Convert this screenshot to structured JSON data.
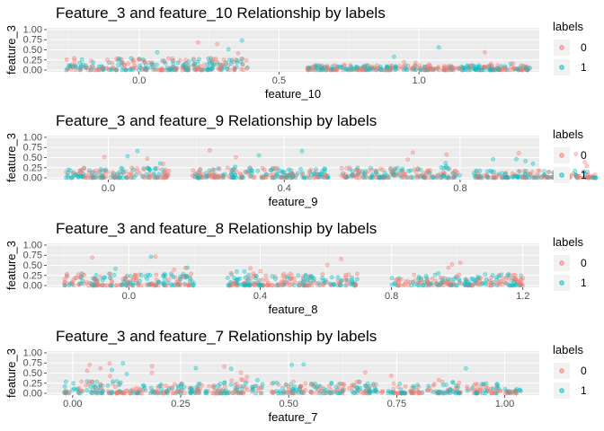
{
  "legend_colors": {
    "0": "#F8766D",
    "1": "#00BFC4"
  },
  "point_alpha": 0.35,
  "chart_data": [
    {
      "type": "scatter",
      "title": "Feature_3 and  feature_10 Relationship by labels",
      "xlabel": "feature_10",
      "ylabel": "feature_3",
      "xlim": [
        -0.33,
        1.43
      ],
      "ylim": [
        0,
        1.0
      ],
      "x_ticks": [
        0.0,
        0.5,
        1.0
      ],
      "x_tick_labels": [
        "0.0",
        "0.5",
        "1.0"
      ],
      "y_ticks": [
        0,
        0.25,
        0.5,
        0.75,
        1.0
      ],
      "y_tick_labels": [
        "0.00",
        "0.25",
        "0.50",
        "0.75",
        "1.00"
      ],
      "grid": true,
      "clusters": [
        [
          -0.26,
          0.39
        ],
        [
          0.6,
          1.4
        ]
      ],
      "cluster_ymax": [
        0.3,
        0.12
      ],
      "legend": {
        "title": "labels",
        "entries": [
          "0",
          "1"
        ],
        "position": "right"
      }
    },
    {
      "type": "scatter",
      "title": "Feature_3 and  feature_9 Relationship by labels",
      "xlabel": "feature_9",
      "ylabel": "feature_3",
      "xlim": [
        -0.14,
        0.98
      ],
      "ylim": [
        0,
        1.0
      ],
      "x_ticks": [
        0.0,
        0.4,
        0.8
      ],
      "x_tick_labels": [
        "0.0",
        "0.4",
        "0.8"
      ],
      "y_ticks": [
        0,
        0.25,
        0.5,
        0.75,
        1.0
      ],
      "y_tick_labels": [
        "0.00",
        "0.25",
        "0.50",
        "0.75",
        "1.00"
      ],
      "grid": true,
      "clusters": [
        [
          -0.1,
          0.14
        ],
        [
          0.19,
          0.5
        ],
        [
          0.53,
          0.8
        ],
        [
          0.83,
          1.11
        ]
      ],
      "cluster_ymax": [
        0.25,
        0.25,
        0.25,
        0.18
      ],
      "legend": {
        "title": "labels",
        "entries": [
          "0",
          "1"
        ],
        "position": "right"
      }
    },
    {
      "type": "scatter",
      "title": "Feature_3 and  feature_8 Relationship by labels",
      "xlabel": "feature_8",
      "ylabel": "feature_3",
      "xlim": [
        -0.25,
        1.25
      ],
      "ylim": [
        0,
        1.0
      ],
      "x_ticks": [
        0.0,
        0.4,
        0.8,
        1.2
      ],
      "x_tick_labels": [
        "0.0",
        "0.4",
        "0.8",
        "1.2"
      ],
      "y_ticks": [
        0,
        0.25,
        0.5,
        0.75,
        1.0
      ],
      "y_tick_labels": [
        "0.00",
        "0.25",
        "0.50",
        "0.75",
        "1.00"
      ],
      "grid": true,
      "clusters": [
        [
          -0.2,
          0.2
        ],
        [
          0.3,
          0.7
        ],
        [
          0.8,
          1.2
        ]
      ],
      "cluster_ymax": [
        0.3,
        0.3,
        0.28
      ],
      "legend": {
        "title": "labels",
        "entries": [
          "0",
          "1"
        ],
        "position": "right"
      }
    },
    {
      "type": "scatter",
      "title": "Feature_3 and  feature_7 Relationship by labels",
      "xlabel": "feature_7",
      "ylabel": "feature_3",
      "xlim": [
        -0.06,
        1.08
      ],
      "ylim": [
        0,
        1.0
      ],
      "x_ticks": [
        0.0,
        0.25,
        0.5,
        0.75,
        1.0
      ],
      "x_tick_labels": [
        "0.00",
        "0.25",
        "0.50",
        "0.75",
        "1.00"
      ],
      "y_ticks": [
        0,
        0.25,
        0.5,
        0.75,
        1.0
      ],
      "y_tick_labels": [
        "0.00",
        "0.25",
        "0.50",
        "0.75",
        "1.00"
      ],
      "grid": true,
      "clusters": [
        [
          -0.02,
          0.07
        ],
        [
          0.08,
          0.17
        ],
        [
          0.18,
          0.26
        ],
        [
          0.27,
          0.35
        ],
        [
          0.35,
          0.44
        ],
        [
          0.46,
          0.54
        ],
        [
          0.55,
          0.63
        ],
        [
          0.64,
          0.72
        ],
        [
          0.73,
          0.81
        ],
        [
          0.82,
          0.9
        ],
        [
          0.91,
          0.99
        ],
        [
          1.0,
          1.04
        ]
      ],
      "cluster_ymax": [
        0.3,
        0.3,
        0.25,
        0.25,
        0.35,
        0.3,
        0.3,
        0.3,
        0.25,
        0.3,
        0.25,
        0.12
      ],
      "legend": {
        "title": "labels",
        "entries": [
          "0",
          "1"
        ],
        "position": "right"
      }
    }
  ]
}
